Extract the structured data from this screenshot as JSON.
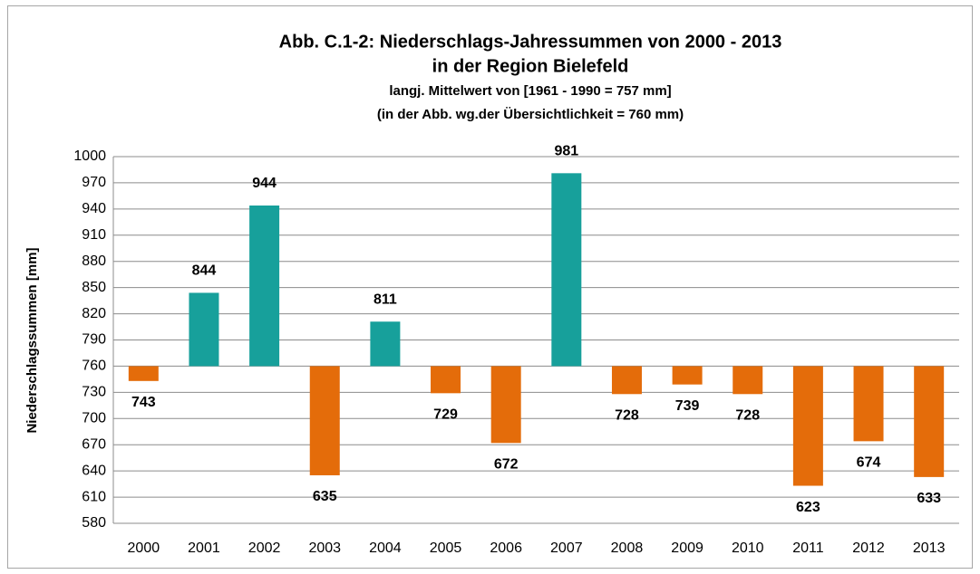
{
  "chart_data": {
    "type": "bar",
    "title": [
      "Abb. C.1-2: Niederschlags-Jahressummen von 2000 - 2013",
      "in der Region Bielefeld"
    ],
    "subtitle": [
      "langj. Mittelwert von [1961 - 1990  = 757 mm]",
      "(in der Abb. wg.der Übersichtlichkeit = 760 mm)"
    ],
    "y_label": "Niederschlagssummen [mm]",
    "categories": [
      "2000",
      "2001",
      "2002",
      "2003",
      "2004",
      "2005",
      "2006",
      "2007",
      "2008",
      "2009",
      "2010",
      "2011",
      "2012",
      "2013"
    ],
    "values": [
      743,
      844,
      944,
      635,
      811,
      729,
      672,
      981,
      728,
      739,
      728,
      623,
      674,
      633
    ],
    "baseline": 760,
    "color": "#17a09b",
    "negative_color": "#e46c0a",
    "ylim": [
      580,
      1000
    ],
    "yticks": [
      580,
      610,
      640,
      670,
      700,
      730,
      760,
      790,
      820,
      850,
      880,
      910,
      940,
      970,
      1000
    ],
    "grid": true
  }
}
